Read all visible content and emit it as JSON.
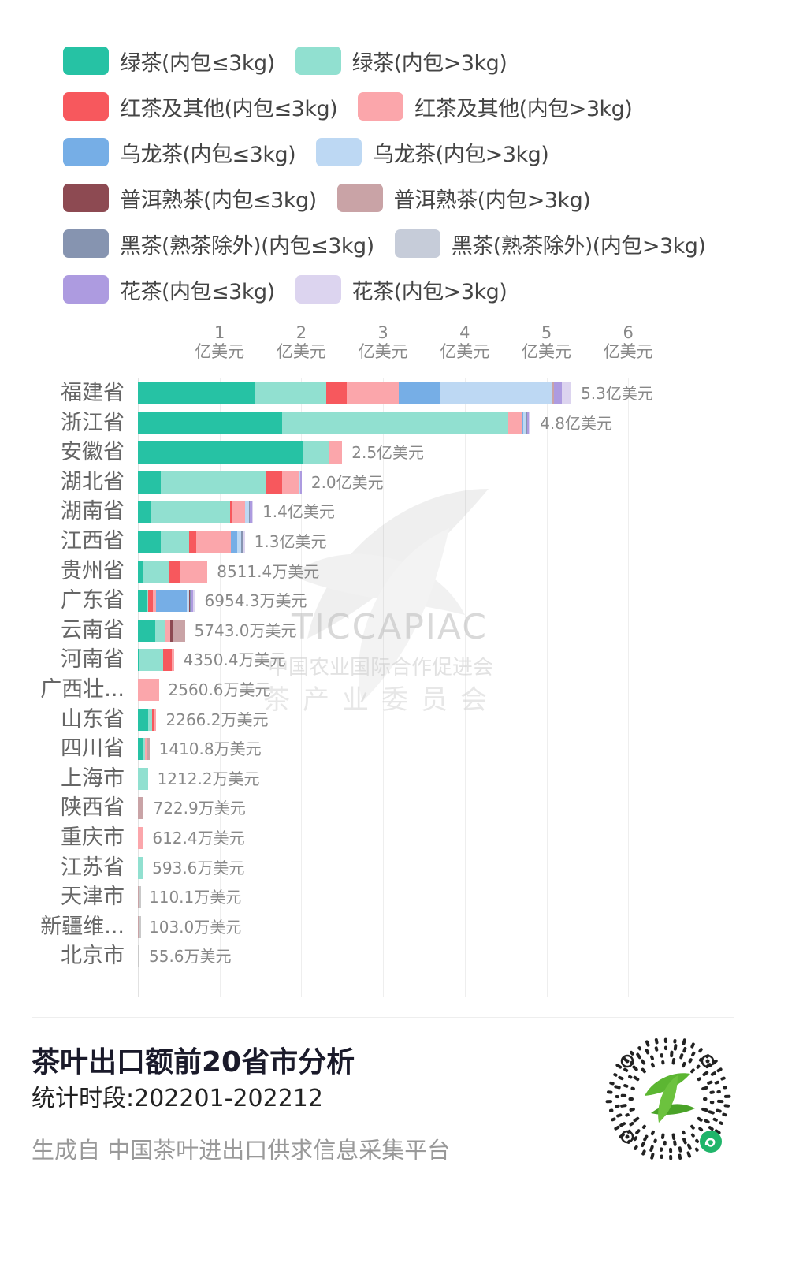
{
  "legend": {
    "rows": [
      [
        {
          "label": "绿茶(内包≤3kg)",
          "color": "#26c2a4"
        },
        {
          "label": "绿茶(内包>3kg)",
          "color": "#91e0d0"
        }
      ],
      [
        {
          "label": "红茶及其他(内包≤3kg)",
          "color": "#f7585d"
        },
        {
          "label": "红茶及其他(内包>3kg)",
          "color": "#fba6ab"
        }
      ],
      [
        {
          "label": "乌龙茶(内包≤3kg)",
          "color": "#76aee6"
        },
        {
          "label": "乌龙茶(内包>3kg)",
          "color": "#bdd8f3"
        }
      ],
      [
        {
          "label": "普洱熟茶(内包≤3kg)",
          "color": "#8d4a52"
        },
        {
          "label": "普洱熟茶(内包>3kg)",
          "color": "#c9a3a6"
        }
      ],
      [
        {
          "label": "黑茶(熟茶除外)(内包≤3kg)",
          "color": "#8694b0"
        },
        {
          "label": "黑茶(熟茶除外)(内包>3kg)",
          "color": "#c6ccd9"
        }
      ],
      [
        {
          "label": "花茶(内包≤3kg)",
          "color": "#ad9be0"
        },
        {
          "label": "花茶(内包>3kg)",
          "color": "#dcd4ef"
        }
      ]
    ]
  },
  "axis": {
    "ticks": [
      {
        "value": "1",
        "unit": "亿美元"
      },
      {
        "value": "2",
        "unit": "亿美元"
      },
      {
        "value": "3",
        "unit": "亿美元"
      },
      {
        "value": "4",
        "unit": "亿美元"
      },
      {
        "value": "5",
        "unit": "亿美元"
      },
      {
        "value": "6",
        "unit": "亿美元"
      }
    ]
  },
  "watermark": {
    "text": "TICCAPIAC",
    "org": "中国农业国际合作促进会",
    "committee": "茶产业委员会"
  },
  "footer": {
    "title": "茶叶出口额前20省市分析",
    "period": "统计时段:202201-202212",
    "source": "生成自 中国茶叶进出口供求信息采集平台"
  },
  "chart_data": {
    "type": "bar",
    "orientation": "horizontal",
    "stacked": true,
    "title": "茶叶出口额前20省市分析",
    "subtitle": "统计时段:202201-202212",
    "xlabel": "亿美元",
    "ylabel": "",
    "xlim": [
      0,
      6
    ],
    "x_ticks": [
      "1亿美元",
      "2亿美元",
      "3亿美元",
      "4亿美元",
      "5亿美元",
      "6亿美元"
    ],
    "grid": true,
    "legend_position": "top",
    "categories": [
      "福建省",
      "浙江省",
      "安徽省",
      "湖北省",
      "湖南省",
      "江西省",
      "贵州省",
      "广东省",
      "云南省",
      "河南省",
      "广西壮...",
      "山东省",
      "四川省",
      "上海市",
      "陕西省",
      "重庆市",
      "江苏省",
      "天津市",
      "新疆维...",
      "北京市"
    ],
    "totals_label": [
      "5.3亿美元",
      "4.8亿美元",
      "2.5亿美元",
      "2.0亿美元",
      "1.4亿美元",
      "1.3亿美元",
      "8511.4万美元",
      "6954.3万美元",
      "5743.0万美元",
      "4350.4万美元",
      "2560.6万美元",
      "2266.2万美元",
      "1410.8万美元",
      "1212.2万美元",
      "722.9万美元",
      "612.4万美元",
      "593.6万美元",
      "110.1万美元",
      "103.0万美元",
      "55.6万美元"
    ],
    "totals": [
      5.3,
      4.8,
      2.5,
      2.0,
      1.4,
      1.3,
      0.85114,
      0.69543,
      0.5743,
      0.43504,
      0.25606,
      0.22662,
      0.14108,
      0.12122,
      0.07229,
      0.06124,
      0.05936,
      0.01101,
      0.0103,
      0.00556
    ],
    "series": [
      {
        "name": "绿茶(内包≤3kg)",
        "color": "#26c2a4",
        "values": [
          1.43,
          1.76,
          1.98,
          0.28,
          0.16,
          0.27,
          0.07,
          0.1,
          0.21,
          0.01,
          0.0,
          0.12,
          0.04,
          0.0,
          0.0,
          0.0,
          0.0,
          0.0,
          0.0,
          0.0
        ]
      },
      {
        "name": "绿茶(内包>3kg)",
        "color": "#91e0d0",
        "values": [
          0.87,
          2.75,
          0.33,
          1.27,
          0.95,
          0.34,
          0.3,
          0.02,
          0.11,
          0.28,
          0.0,
          0.04,
          0.02,
          0.11,
          0.0,
          0.0,
          0.04,
          0.0,
          0.0,
          0.0
        ]
      },
      {
        "name": "红茶及其他(内包≤3kg)",
        "color": "#f7585d",
        "values": [
          0.25,
          0.0,
          0.0,
          0.19,
          0.02,
          0.09,
          0.14,
          0.06,
          0.0,
          0.11,
          0.0,
          0.03,
          0.0,
          0.0,
          0.0,
          0.0,
          0.0,
          0.0,
          0.0,
          0.0
        ]
      },
      {
        "name": "红茶及其他(内包>3kg)",
        "color": "#fba6ab",
        "values": [
          0.64,
          0.17,
          0.15,
          0.2,
          0.16,
          0.41,
          0.32,
          0.03,
          0.07,
          0.02,
          0.25,
          0.02,
          0.02,
          0.0,
          0.0,
          0.06,
          0.0,
          0.0,
          0.0,
          0.0
        ]
      },
      {
        "name": "乌龙茶(内包≤3kg)",
        "color": "#76aee6",
        "values": [
          0.51,
          0.02,
          0.0,
          0.0,
          0.0,
          0.08,
          0.0,
          0.37,
          0.0,
          0.0,
          0.0,
          0.0,
          0.0,
          0.0,
          0.0,
          0.0,
          0.0,
          0.0,
          0.0,
          0.0
        ]
      },
      {
        "name": "乌龙茶(内包>3kg)",
        "color": "#bdd8f3",
        "values": [
          1.35,
          0.03,
          0.0,
          0.02,
          0.05,
          0.04,
          0.0,
          0.02,
          0.0,
          0.0,
          0.0,
          0.0,
          0.0,
          0.0,
          0.0,
          0.0,
          0.0,
          0.0,
          0.0,
          0.0
        ]
      },
      {
        "name": "普洱熟茶(内包≤3kg)",
        "color": "#8d4a52",
        "values": [
          0.01,
          0.0,
          0.0,
          0.0,
          0.0,
          0.0,
          0.0,
          0.01,
          0.02,
          0.0,
          0.0,
          0.0,
          0.0,
          0.0,
          0.0,
          0.0,
          0.0,
          0.0,
          0.0,
          0.0
        ]
      },
      {
        "name": "普洱熟茶(内包>3kg)",
        "color": "#c9a3a6",
        "values": [
          0.02,
          0.0,
          0.0,
          0.0,
          0.0,
          0.0,
          0.0,
          0.0,
          0.15,
          0.0,
          0.0,
          0.0,
          0.02,
          0.0,
          0.06,
          0.0,
          0.0,
          0.01,
          0.01,
          0.0
        ]
      },
      {
        "name": "黑茶(熟茶除外)(内包≤3kg)",
        "color": "#8694b0",
        "values": [
          0.0,
          0.01,
          0.0,
          0.0,
          0.01,
          0.02,
          0.0,
          0.02,
          0.0,
          0.0,
          0.0,
          0.0,
          0.0,
          0.0,
          0.0,
          0.0,
          0.0,
          0.0,
          0.0,
          0.0
        ]
      },
      {
        "name": "黑茶(熟茶除外)(内包>3kg)",
        "color": "#c6ccd9",
        "values": [
          0.0,
          0.0,
          0.0,
          0.0,
          0.0,
          0.0,
          0.0,
          0.0,
          0.0,
          0.0,
          0.0,
          0.0,
          0.0,
          0.0,
          0.0,
          0.0,
          0.0,
          0.0,
          0.0,
          0.0
        ]
      },
      {
        "name": "花茶(内包≤3kg)",
        "color": "#ad9be0",
        "values": [
          0.09,
          0.02,
          0.0,
          0.01,
          0.02,
          0.01,
          0.0,
          0.02,
          0.0,
          0.0,
          0.0,
          0.0,
          0.0,
          0.0,
          0.0,
          0.0,
          0.0,
          0.0,
          0.0,
          0.0
        ]
      },
      {
        "name": "花茶(内包>3kg)",
        "color": "#dcd4ef",
        "values": [
          0.12,
          0.02,
          0.0,
          0.0,
          0.01,
          0.01,
          0.0,
          0.02,
          0.0,
          0.0,
          0.0,
          0.0,
          0.0,
          0.0,
          0.0,
          0.0,
          0.0,
          0.0,
          0.0,
          0.0
        ]
      }
    ]
  }
}
